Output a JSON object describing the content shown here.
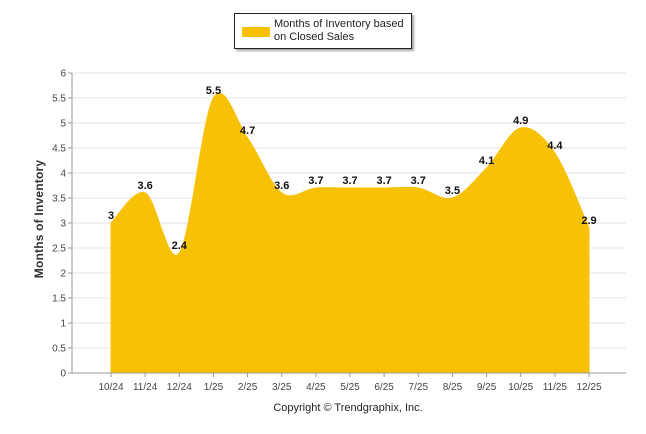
{
  "chart_data": {
    "type": "area",
    "title": "",
    "xlabel": "",
    "ylabel": "Months of Inventory",
    "ylim": [
      0,
      6
    ],
    "yticks": [
      "0",
      "0.5",
      "1",
      "1.5",
      "2",
      "2.5",
      "3",
      "3.5",
      "4",
      "4.5",
      "5",
      "5.5",
      "6"
    ],
    "categories": [
      "10/24",
      "11/24",
      "12/24",
      "1/25",
      "2/25",
      "3/25",
      "4/25",
      "5/25",
      "6/25",
      "7/25",
      "8/25",
      "9/25",
      "10/25",
      "11/25",
      "12/25"
    ],
    "series": [
      {
        "name": "Months of Inventory based on Closed Sales",
        "values": [
          3,
          3.6,
          2.4,
          5.5,
          4.7,
          3.6,
          3.7,
          3.7,
          3.7,
          3.7,
          3.5,
          4.1,
          4.9,
          4.4,
          2.9
        ],
        "labels": [
          "3",
          "3.6",
          "2.4",
          "5.5",
          "4.7",
          "3.6",
          "3.7",
          "3.7",
          "3.7",
          "3.7",
          "3.5",
          "4.1",
          "4.9",
          "4.4",
          "2.9"
        ],
        "color": "#F7C106"
      }
    ],
    "legend": {
      "text": "Months of Inventory based on Closed Sales",
      "position": "top"
    }
  },
  "footer": {
    "copyright": "Copyright © Trendgraphix, Inc."
  },
  "colors": {
    "fill": "#F7C106",
    "grid": "#e6e6e6",
    "axis": "#999999"
  }
}
